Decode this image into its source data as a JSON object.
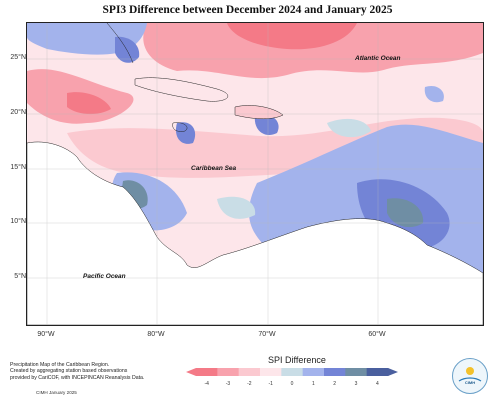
{
  "title": "SPI3 Difference between December 2024 and January 2025",
  "labels": {
    "atlantic": "Atlantic Ocean",
    "caribbean": "Caribbean Sea",
    "pacific": "Pacific Ocean"
  },
  "lat_ticks": [
    "25°N",
    "20°N",
    "15°N",
    "10°N",
    "5°N"
  ],
  "lon_ticks": [
    "90°W",
    "80°W",
    "70°W",
    "60°W"
  ],
  "legend": {
    "title": "SPI Difference",
    "ticks": [
      "-4",
      "-3",
      "-2",
      "-1",
      "0",
      "1",
      "2",
      "3",
      "4"
    ],
    "colors": [
      "#f47a87",
      "#f8a2ad",
      "#fbc9d0",
      "#fde6ea",
      "#c9dde6",
      "#a3b3ec",
      "#7384d6",
      "#6f8ea4",
      "#4a5f9e"
    ]
  },
  "footer": {
    "line1": "Precipitation Map of the Caribbean Region.",
    "line2": "Created by aggregating station based observations",
    "line3": "provided by CariCOF, with INCEPINCAN Reanalysis Data.",
    "date": "CIMH January 2025"
  },
  "logo_text": "CIMH"
}
